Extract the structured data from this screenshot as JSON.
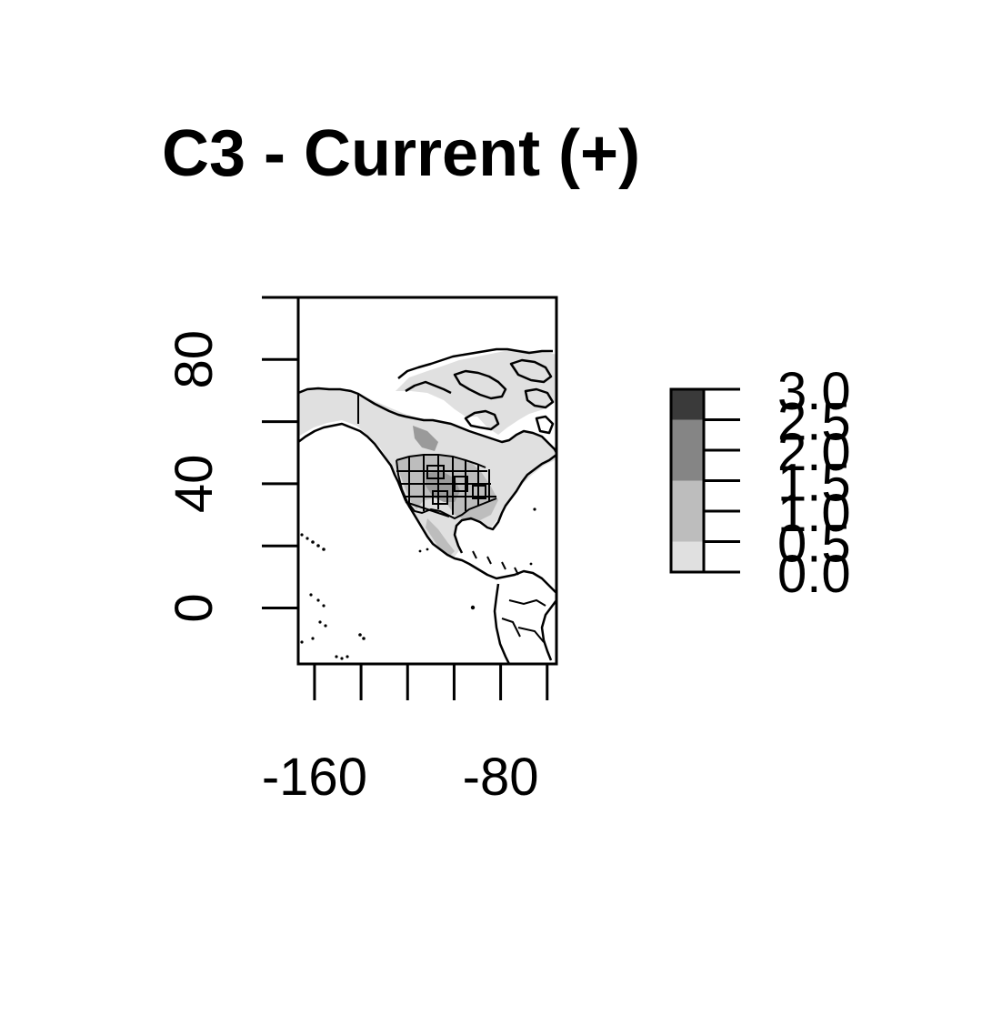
{
  "title": "C3 - Current (+)",
  "x_axis": {
    "ticks": [
      -160,
      -140,
      -120,
      -100,
      -80,
      -60
    ],
    "labels": [
      {
        "value": -160,
        "text": "-160"
      },
      {
        "value": -80,
        "text": "-80"
      }
    ],
    "range": [
      -167,
      -56
    ]
  },
  "y_axis": {
    "ticks": [
      0,
      20,
      40,
      60,
      80,
      100
    ],
    "labels": [
      {
        "value": 0,
        "text": "0"
      },
      {
        "value": 40,
        "text": "40"
      },
      {
        "value": 80,
        "text": "80"
      }
    ],
    "range": [
      -18,
      100
    ]
  },
  "legend": {
    "breaks": [
      {
        "value": 0.0,
        "text": "0.0"
      },
      {
        "value": 0.5,
        "text": "0.5"
      },
      {
        "value": 1.0,
        "text": "1.0"
      },
      {
        "value": 1.5,
        "text": "1.5"
      },
      {
        "value": 2.0,
        "text": "2.0"
      },
      {
        "value": 2.5,
        "text": "2.5"
      },
      {
        "value": 3.0,
        "text": "3.0"
      }
    ],
    "colors": [
      "#e0e0e0",
      "#bdbdbd",
      "#bdbdbd",
      "#858585",
      "#858585",
      "#3a3a3a"
    ]
  },
  "colors": {
    "land_low": "#e0e0e0",
    "land_mid": "#bdbdbd",
    "land_high": "#9a9a9a",
    "background": "#ffffff",
    "lines": "#000000"
  }
}
